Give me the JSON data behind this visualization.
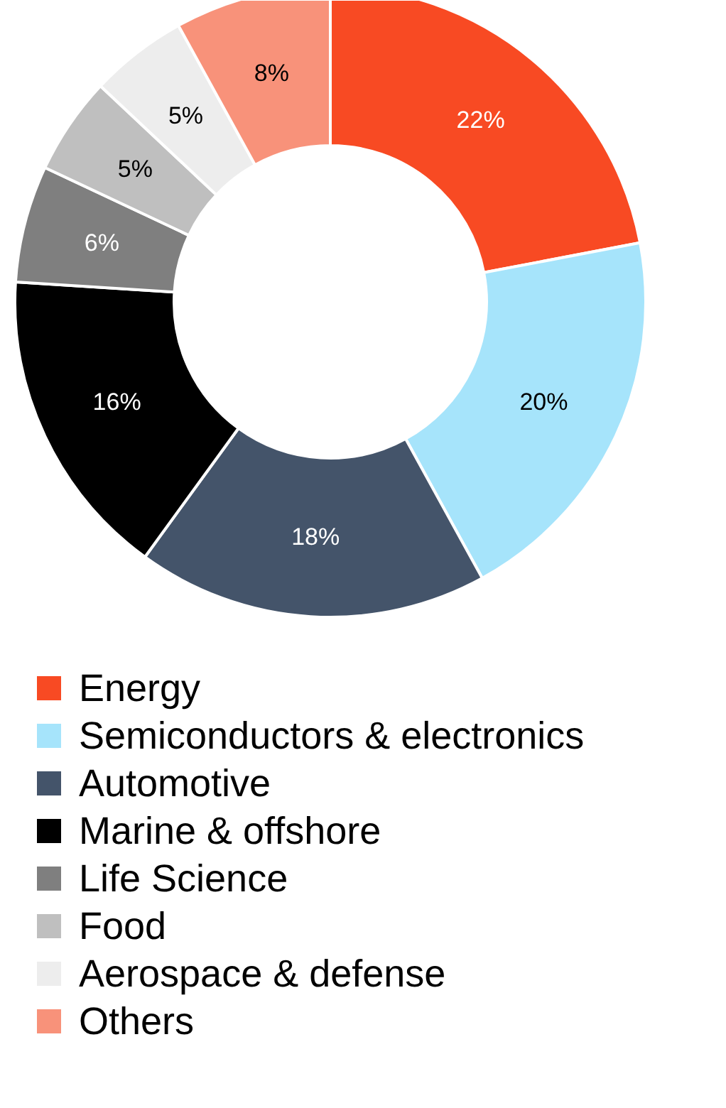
{
  "chart_data": {
    "type": "donut",
    "categories": [
      "Energy",
      "Semiconductors & electronics",
      "Automotive",
      "Marine & offshore",
      "Life Science",
      "Food",
      "Aerospace & defense",
      "Others"
    ],
    "values": [
      22,
      20,
      18,
      16,
      6,
      5,
      5,
      8
    ],
    "colors": [
      "#f84a23",
      "#a6e4fb",
      "#44546a",
      "#000000",
      "#7f7f7f",
      "#bfbfbf",
      "#ededed",
      "#f8927a"
    ],
    "value_labels": [
      "22%",
      "20%",
      "18%",
      "16%",
      "6%",
      "5%",
      "5%",
      "8%"
    ],
    "legend": "bottom"
  }
}
